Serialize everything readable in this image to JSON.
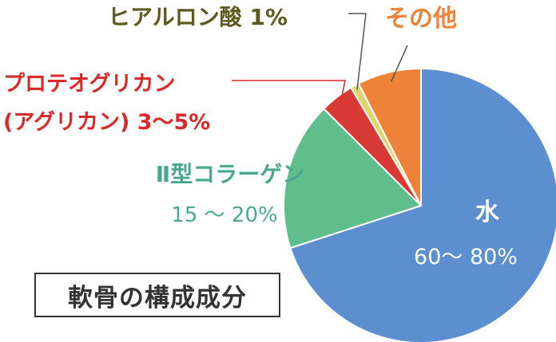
{
  "chart_data": {
    "type": "pie",
    "title": "軟骨の構成成分",
    "slices": [
      {
        "name": "水",
        "value_label": "60～ 80%",
        "value": 70,
        "color": "#5b8fcf"
      },
      {
        "name": "Ⅱ型コラーゲン",
        "value_label": "15 ～ 20%",
        "value": 17.5,
        "color": "#5fbe8c"
      },
      {
        "name": "プロテオグリカン",
        "name_line2": "(アグリカン) 3～5%",
        "value": 4,
        "color": "#da3a35"
      },
      {
        "name": "ヒアルロン酸 1%",
        "value": 1,
        "color": "#e3d56e"
      },
      {
        "name": "その他",
        "value": 7.5,
        "color": "#ee8238"
      }
    ],
    "label_colors": {
      "水": "#ffffff",
      "Ⅱ型コラーゲン": "#4aa98c",
      "プロテオグリカン": "#d82a2a",
      "ヒアルロン酸": "#5c5a1e",
      "その他": "#ee8238"
    },
    "leader_colors": {
      "プロテオグリカン": "#d82a2a",
      "ヒアルロン酸": "#555555",
      "その他": "#555555"
    }
  }
}
